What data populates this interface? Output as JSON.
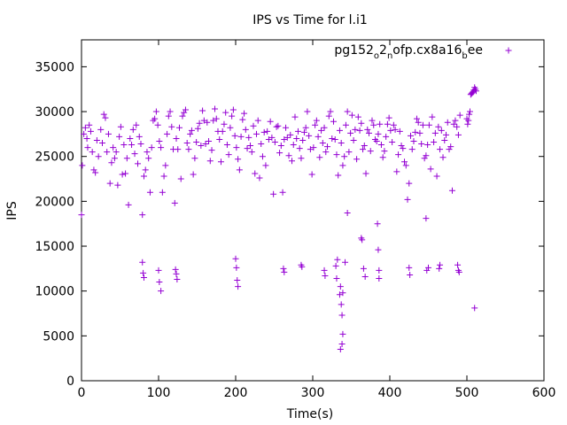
{
  "chart_data": {
    "type": "scatter",
    "title": "IPS vs Time for l.i1",
    "xlabel": "Time(s)",
    "ylabel": "IPS",
    "xlim": [
      0,
      600
    ],
    "ylim": [
      0,
      38000
    ],
    "xticks": [
      0,
      100,
      200,
      300,
      400,
      500,
      600
    ],
    "yticks": [
      0,
      5000,
      10000,
      15000,
      20000,
      25000,
      30000,
      35000
    ],
    "grid": false,
    "legend_position": "top-right",
    "series": [
      {
        "name": "pg152_o2_nofp.cx8a16_bee",
        "legend_main": "pg152",
        "legend_parts": [
          {
            "text": "pg152",
            "sub": false
          },
          {
            "text": "o",
            "sub": true
          },
          {
            "text": "2",
            "sub": false
          },
          {
            "text": "n",
            "sub": true
          },
          {
            "text": "ofp.cx8a16",
            "sub": false
          },
          {
            "text": "b",
            "sub": true
          },
          {
            "text": "ee",
            "sub": false
          }
        ],
        "color": "#9400d3",
        "marker": "plus",
        "points": [
          [
            0,
            18500
          ],
          [
            1,
            24000
          ],
          [
            3,
            27500
          ],
          [
            5,
            28200
          ],
          [
            7,
            27000
          ],
          [
            8,
            26000
          ],
          [
            10,
            28500
          ],
          [
            12,
            27800
          ],
          [
            14,
            25500
          ],
          [
            16,
            23500
          ],
          [
            18,
            23200
          ],
          [
            20,
            26800
          ],
          [
            22,
            25000
          ],
          [
            25,
            28000
          ],
          [
            27,
            26500
          ],
          [
            29,
            29700
          ],
          [
            31,
            29300
          ],
          [
            33,
            25500
          ],
          [
            35,
            27500
          ],
          [
            37,
            22000
          ],
          [
            39,
            24300
          ],
          [
            41,
            26000
          ],
          [
            43,
            24800
          ],
          [
            45,
            25500
          ],
          [
            47,
            21800
          ],
          [
            49,
            27200
          ],
          [
            51,
            28300
          ],
          [
            53,
            23000
          ],
          [
            55,
            26300
          ],
          [
            57,
            23100
          ],
          [
            59,
            24800
          ],
          [
            61,
            19600
          ],
          [
            63,
            27000
          ],
          [
            65,
            26300
          ],
          [
            67,
            28000
          ],
          [
            69,
            25300
          ],
          [
            71,
            28500
          ],
          [
            73,
            24200
          ],
          [
            75,
            27200
          ],
          [
            77,
            26400
          ],
          [
            79,
            18500
          ],
          [
            81,
            22800
          ],
          [
            83,
            23500
          ],
          [
            85,
            25500
          ],
          [
            87,
            24800
          ],
          [
            89,
            21000
          ],
          [
            91,
            26000
          ],
          [
            93,
            29000
          ],
          [
            95,
            29200
          ],
          [
            97,
            30000
          ],
          [
            99,
            28500
          ],
          [
            101,
            26700
          ],
          [
            103,
            26000
          ],
          [
            105,
            21000
          ],
          [
            107,
            22800
          ],
          [
            109,
            24000
          ],
          [
            111,
            27500
          ],
          [
            113,
            29500
          ],
          [
            115,
            30000
          ],
          [
            117,
            28300
          ],
          [
            119,
            25800
          ],
          [
            121,
            19800
          ],
          [
            123,
            27000
          ],
          [
            125,
            25800
          ],
          [
            127,
            28200
          ],
          [
            129,
            22500
          ],
          [
            131,
            29500
          ],
          [
            133,
            29900
          ],
          [
            135,
            30200
          ],
          [
            137,
            26500
          ],
          [
            139,
            25800
          ],
          [
            141,
            27500
          ],
          [
            143,
            27900
          ],
          [
            145,
            23000
          ],
          [
            147,
            24800
          ],
          [
            149,
            26600
          ],
          [
            151,
            28100
          ],
          [
            153,
            28700
          ],
          [
            155,
            26200
          ],
          [
            157,
            30100
          ],
          [
            159,
            29000
          ],
          [
            161,
            26400
          ],
          [
            163,
            28800
          ],
          [
            165,
            26700
          ],
          [
            167,
            24500
          ],
          [
            169,
            25700
          ],
          [
            171,
            29000
          ],
          [
            173,
            30300
          ],
          [
            175,
            29200
          ],
          [
            177,
            27800
          ],
          [
            179,
            26900
          ],
          [
            181,
            24400
          ],
          [
            183,
            27800
          ],
          [
            185,
            28600
          ],
          [
            187,
            29900
          ],
          [
            189,
            26300
          ],
          [
            191,
            25200
          ],
          [
            193,
            28200
          ],
          [
            195,
            29500
          ],
          [
            197,
            30200
          ],
          [
            199,
            27300
          ],
          [
            201,
            26000
          ],
          [
            203,
            24700
          ],
          [
            205,
            23500
          ],
          [
            207,
            27200
          ],
          [
            209,
            29100
          ],
          [
            211,
            29800
          ],
          [
            213,
            28000
          ],
          [
            215,
            25900
          ],
          [
            217,
            27100
          ],
          [
            219,
            26200
          ],
          [
            221,
            25500
          ],
          [
            223,
            28400
          ],
          [
            225,
            23100
          ],
          [
            227,
            27500
          ],
          [
            229,
            29000
          ],
          [
            231,
            22600
          ],
          [
            233,
            26400
          ],
          [
            235,
            25000
          ],
          [
            237,
            27700
          ],
          [
            239,
            24000
          ],
          [
            241,
            27800
          ],
          [
            243,
            26900
          ],
          [
            245,
            28900
          ],
          [
            247,
            27100
          ],
          [
            249,
            20800
          ],
          [
            251,
            26600
          ],
          [
            253,
            28300
          ],
          [
            255,
            28400
          ],
          [
            257,
            25400
          ],
          [
            259,
            26200
          ],
          [
            261,
            21000
          ],
          [
            263,
            26900
          ],
          [
            265,
            28200
          ],
          [
            267,
            27100
          ],
          [
            269,
            25100
          ],
          [
            271,
            27400
          ],
          [
            273,
            24500
          ],
          [
            275,
            26300
          ],
          [
            277,
            29400
          ],
          [
            279,
            27000
          ],
          [
            281,
            27800
          ],
          [
            283,
            25900
          ],
          [
            285,
            24800
          ],
          [
            287,
            26800
          ],
          [
            289,
            27700
          ],
          [
            291,
            28200
          ],
          [
            293,
            30000
          ],
          [
            295,
            27300
          ],
          [
            297,
            25800
          ],
          [
            299,
            23000
          ],
          [
            301,
            26000
          ],
          [
            303,
            28500
          ],
          [
            305,
            29000
          ],
          [
            307,
            27200
          ],
          [
            309,
            24900
          ],
          [
            311,
            27900
          ],
          [
            313,
            26500
          ],
          [
            315,
            28200
          ],
          [
            317,
            25500
          ],
          [
            319,
            26100
          ],
          [
            321,
            29500
          ],
          [
            323,
            30000
          ],
          [
            325,
            27000
          ],
          [
            327,
            28900
          ],
          [
            329,
            26900
          ],
          [
            331,
            25200
          ],
          [
            333,
            22900
          ],
          [
            335,
            27900
          ],
          [
            337,
            26500
          ],
          [
            339,
            24000
          ],
          [
            341,
            25000
          ],
          [
            343,
            28500
          ],
          [
            345,
            30000
          ],
          [
            347,
            25500
          ],
          [
            349,
            27600
          ],
          [
            351,
            29600
          ],
          [
            353,
            26800
          ],
          [
            355,
            28000
          ],
          [
            357,
            24700
          ],
          [
            359,
            29400
          ],
          [
            361,
            27900
          ],
          [
            363,
            28700
          ],
          [
            365,
            25800
          ],
          [
            367,
            26200
          ],
          [
            369,
            23100
          ],
          [
            371,
            28000
          ],
          [
            373,
            27600
          ],
          [
            375,
            25600
          ],
          [
            377,
            29000
          ],
          [
            379,
            28500
          ],
          [
            381,
            26900
          ],
          [
            383,
            26700
          ],
          [
            385,
            27500
          ],
          [
            387,
            28600
          ],
          [
            389,
            26300
          ],
          [
            391,
            24900
          ],
          [
            393,
            25600
          ],
          [
            395,
            27200
          ],
          [
            397,
            28600
          ],
          [
            399,
            29300
          ],
          [
            401,
            27900
          ],
          [
            403,
            26600
          ],
          [
            405,
            28500
          ],
          [
            407,
            28000
          ],
          [
            409,
            23300
          ],
          [
            411,
            25200
          ],
          [
            413,
            27800
          ],
          [
            415,
            26200
          ],
          [
            417,
            25900
          ],
          [
            419,
            24400
          ],
          [
            421,
            24000
          ],
          [
            423,
            20200
          ],
          [
            425,
            22000
          ],
          [
            427,
            27300
          ],
          [
            429,
            25800
          ],
          [
            431,
            26700
          ],
          [
            433,
            27700
          ],
          [
            435,
            29200
          ],
          [
            437,
            28800
          ],
          [
            439,
            27600
          ],
          [
            441,
            26400
          ],
          [
            443,
            28500
          ],
          [
            445,
            24800
          ],
          [
            447,
            25100
          ],
          [
            449,
            26300
          ],
          [
            451,
            28500
          ],
          [
            453,
            23600
          ],
          [
            455,
            29400
          ],
          [
            457,
            26600
          ],
          [
            459,
            27600
          ],
          [
            461,
            22800
          ],
          [
            463,
            28300
          ],
          [
            465,
            25800
          ],
          [
            467,
            27900
          ],
          [
            469,
            24900
          ],
          [
            471,
            26800
          ],
          [
            473,
            27400
          ],
          [
            475,
            28800
          ],
          [
            477,
            25800
          ],
          [
            479,
            26100
          ],
          [
            481,
            21200
          ],
          [
            483,
            28600
          ],
          [
            485,
            29000
          ],
          [
            487,
            28300
          ],
          [
            489,
            27400
          ],
          [
            491,
            29600
          ],
          [
            79,
            13200
          ],
          [
            80,
            12000
          ],
          [
            81,
            11500
          ],
          [
            100,
            12300
          ],
          [
            101,
            11000
          ],
          [
            103,
            10000
          ],
          [
            122,
            12400
          ],
          [
            123,
            11900
          ],
          [
            124,
            11300
          ],
          [
            200,
            13600
          ],
          [
            201,
            12600
          ],
          [
            202,
            11200
          ],
          [
            203,
            10500
          ],
          [
            262,
            12500
          ],
          [
            263,
            12100
          ],
          [
            285,
            12900
          ],
          [
            286,
            12700
          ],
          [
            315,
            12300
          ],
          [
            316,
            11700
          ],
          [
            330,
            12800
          ],
          [
            331,
            11400
          ],
          [
            332,
            13500
          ],
          [
            335,
            9600
          ],
          [
            336,
            10500
          ],
          [
            337,
            8500
          ],
          [
            338,
            7300
          ],
          [
            339,
            5200
          ],
          [
            338,
            4100
          ],
          [
            336,
            3500
          ],
          [
            339,
            9800
          ],
          [
            342,
            13200
          ],
          [
            345,
            18700
          ],
          [
            363,
            15900
          ],
          [
            364,
            15700
          ],
          [
            366,
            12500
          ],
          [
            368,
            11600
          ],
          [
            384,
            17500
          ],
          [
            385,
            14600
          ],
          [
            386,
            12300
          ],
          [
            386,
            11400
          ],
          [
            425,
            12600
          ],
          [
            426,
            11800
          ],
          [
            447,
            18100
          ],
          [
            448,
            12300
          ],
          [
            450,
            12600
          ],
          [
            464,
            12500
          ],
          [
            465,
            12900
          ],
          [
            488,
            12900
          ],
          [
            489,
            12300
          ],
          [
            490,
            12100
          ],
          [
            500,
            29200
          ],
          [
            501,
            28600
          ],
          [
            502,
            29000
          ],
          [
            503,
            29700
          ],
          [
            504,
            30000
          ],
          [
            505,
            31900
          ],
          [
            506,
            32000
          ],
          [
            507,
            32100
          ],
          [
            508,
            32200
          ],
          [
            509,
            32400
          ],
          [
            510,
            32700
          ],
          [
            511,
            32500
          ],
          [
            512,
            32300
          ],
          [
            510,
            8100
          ]
        ]
      }
    ]
  }
}
